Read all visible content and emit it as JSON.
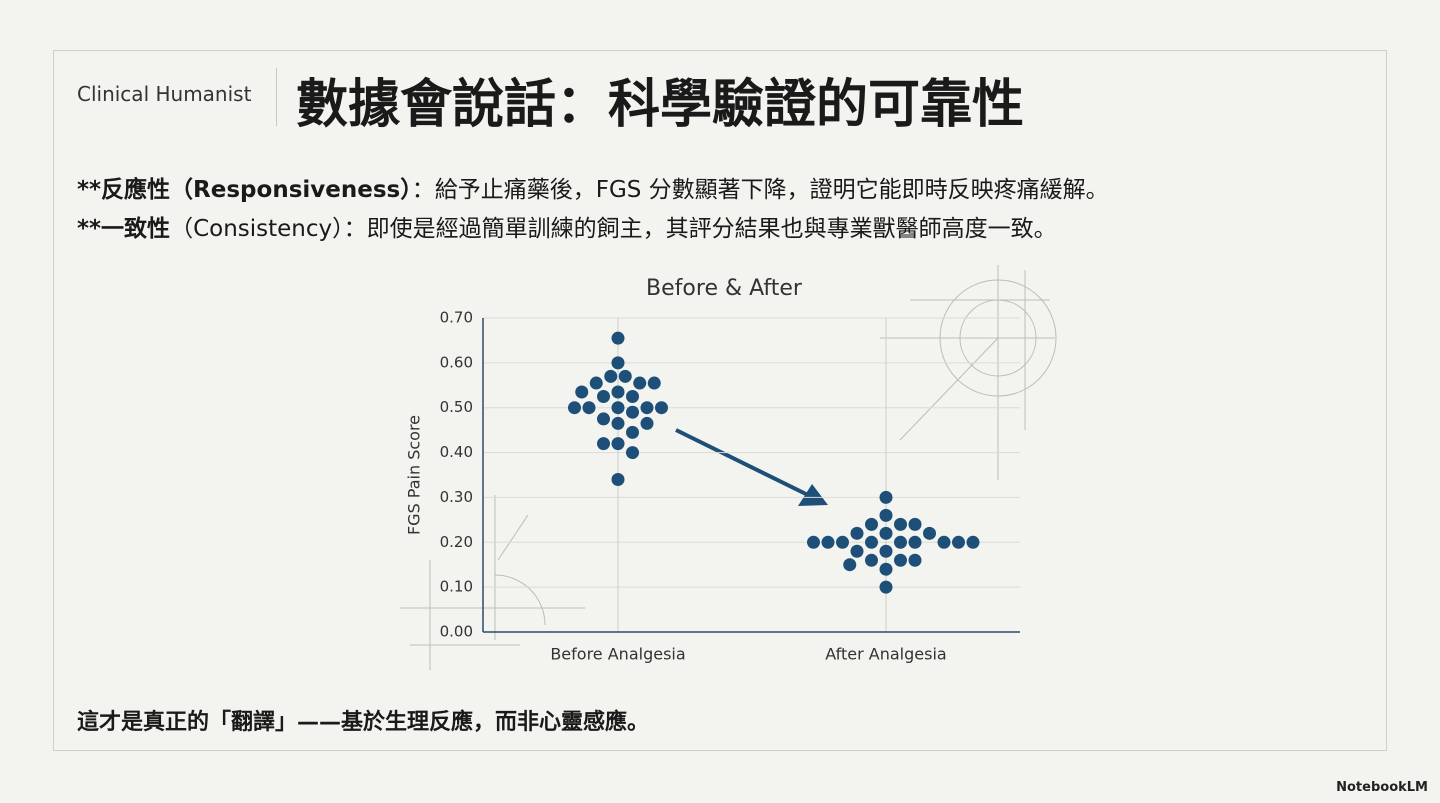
{
  "header": {
    "brand": "Clinical Humanist",
    "title": "數據會說話：科學驗證的可靠性"
  },
  "points": [
    {
      "label": "**反應性（Responsiveness）",
      "text": "：給予止痛藥後，FGS 分數顯著下降，證明它能即時反映疼痛緩解。"
    },
    {
      "label": "**一致性",
      "text": "（Consistency）：即使是經過簡單訓練的飼主，其評分結果也與專業獸醫師高度一致。"
    }
  ],
  "chart_data": {
    "type": "beeswarm",
    "title": "Before & After",
    "ylabel": "FGS Pain Score",
    "categories": [
      "Before Analgesia",
      "After Analgesia"
    ],
    "values": [
      [
        0.655,
        0.6,
        0.57,
        0.57,
        0.555,
        0.555,
        0.555,
        0.535,
        0.535,
        0.525,
        0.525,
        0.5,
        0.5,
        0.5,
        0.5,
        0.5,
        0.49,
        0.475,
        0.465,
        0.465,
        0.445,
        0.42,
        0.42,
        0.4,
        0.34
      ],
      [
        0.3,
        0.26,
        0.24,
        0.24,
        0.24,
        0.22,
        0.22,
        0.22,
        0.2,
        0.2,
        0.2,
        0.2,
        0.2,
        0.2,
        0.2,
        0.2,
        0.2,
        0.18,
        0.18,
        0.16,
        0.16,
        0.16,
        0.15,
        0.14,
        0.1
      ]
    ],
    "color": "#1d4f79",
    "ylim": [
      0,
      0.7
    ],
    "yticks": [
      {
        "value": 0,
        "label": "0.00"
      },
      {
        "value": 0.1,
        "label": "0.10"
      },
      {
        "value": 0.2,
        "label": "0.20"
      },
      {
        "value": 0.3,
        "label": "0.30"
      },
      {
        "value": 0.4,
        "label": "0.40"
      },
      {
        "value": 0.5,
        "label": "0.50"
      },
      {
        "value": 0.6,
        "label": "0.60"
      },
      {
        "value": 0.7,
        "label": "0.70"
      }
    ],
    "grid": true
  },
  "footer": "這才是真正的「翻譯」——基於生理反應，而非心靈感應。",
  "watermark": "NotebookLM"
}
